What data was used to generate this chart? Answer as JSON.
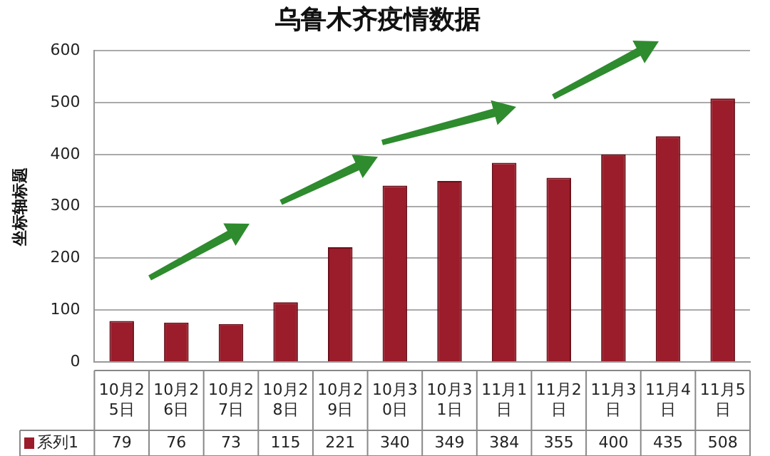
{
  "chart_data": {
    "type": "bar",
    "title": "乌鲁木齐疫情数据",
    "ylabel": "坐标轴标题",
    "categories": [
      "10月25日",
      "10月26日",
      "10月27日",
      "10月28日",
      "10月29日",
      "10月30日",
      "10月31日",
      "11月1日",
      "11月2日",
      "11月3日",
      "11月4日",
      "11月5日"
    ],
    "series": [
      {
        "name": "系列1",
        "color": "#9b1c2a",
        "values": [
          79,
          76,
          73,
          115,
          221,
          340,
          349,
          384,
          355,
          400,
          435,
          508
        ]
      }
    ],
    "ylim": [
      0,
      600
    ],
    "yticks": [
      0,
      100,
      200,
      300,
      400,
      500,
      600
    ],
    "grid": "y",
    "legend": "bottom",
    "data_labels": true
  }
}
